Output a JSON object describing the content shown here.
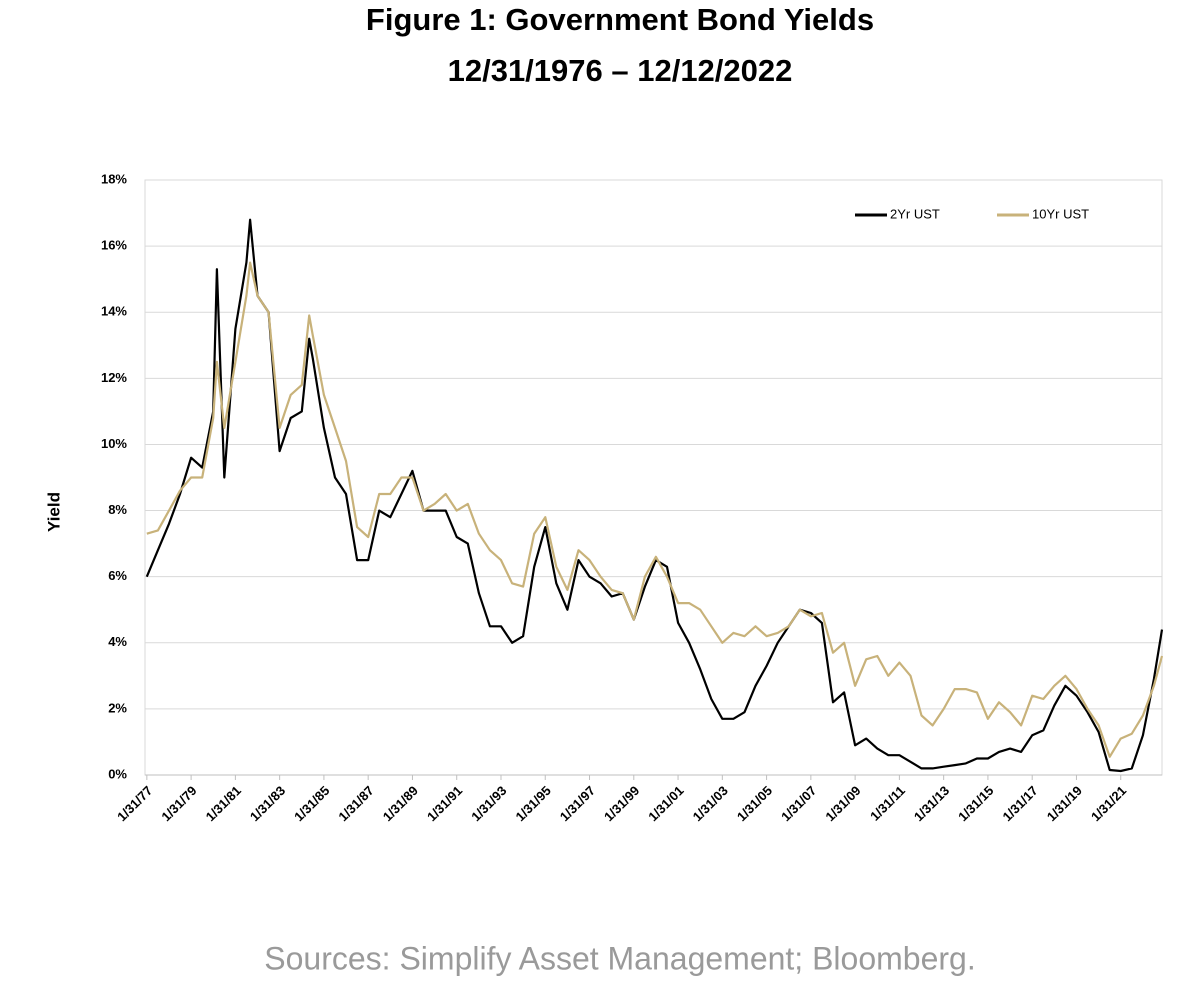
{
  "chart_data": {
    "type": "line",
    "title": "Figure 1:  Government Bond Yields",
    "subtitle": "12/31/1976 – 12/12/2022",
    "y_label": "Yield",
    "source": "Sources: Simplify Asset Management; Bloomberg.",
    "x": [
      "1/31/77",
      "7/31/77",
      "1/31/78",
      "7/31/78",
      "1/31/79",
      "7/31/79",
      "1/31/80",
      "3/31/80",
      "7/31/80",
      "1/31/81",
      "7/31/81",
      "9/30/81",
      "1/31/82",
      "7/31/82",
      "1/31/83",
      "7/31/83",
      "1/31/84",
      "5/31/84",
      "7/31/84",
      "1/31/85",
      "7/31/85",
      "1/31/86",
      "7/31/86",
      "1/31/87",
      "7/31/87",
      "1/31/88",
      "7/31/88",
      "1/31/89",
      "7/31/89",
      "1/31/90",
      "7/31/90",
      "1/31/91",
      "7/31/91",
      "1/31/92",
      "7/31/92",
      "1/31/93",
      "7/31/93",
      "1/31/94",
      "7/31/94",
      "1/31/95",
      "7/31/95",
      "1/31/96",
      "7/31/96",
      "1/31/97",
      "7/31/97",
      "1/31/98",
      "7/31/98",
      "1/31/99",
      "7/31/99",
      "1/31/00",
      "7/31/00",
      "1/31/01",
      "7/31/01",
      "1/31/02",
      "7/31/02",
      "1/31/03",
      "7/31/03",
      "1/31/04",
      "7/31/04",
      "1/31/05",
      "7/31/05",
      "1/31/06",
      "7/31/06",
      "1/31/07",
      "7/31/07",
      "1/31/08",
      "7/31/08",
      "1/31/09",
      "7/31/09",
      "1/31/10",
      "7/31/10",
      "1/31/11",
      "7/31/11",
      "1/31/12",
      "7/31/12",
      "1/31/13",
      "7/31/13",
      "1/31/14",
      "7/31/14",
      "1/31/15",
      "7/31/15",
      "1/31/16",
      "7/31/16",
      "1/31/17",
      "7/31/17",
      "1/31/18",
      "7/31/18",
      "1/31/19",
      "7/31/19",
      "1/31/20",
      "7/31/20",
      "1/31/21",
      "7/31/21",
      "1/31/22",
      "7/31/22",
      "12/12/22"
    ],
    "series": [
      {
        "name": "2Yr UST",
        "color": "#000000",
        "values": [
          6.0,
          6.8,
          7.6,
          8.5,
          9.6,
          9.3,
          11.0,
          15.3,
          9.0,
          13.5,
          15.5,
          16.8,
          14.5,
          14.0,
          9.8,
          10.8,
          11.0,
          13.2,
          12.6,
          10.5,
          9.0,
          8.5,
          6.5,
          6.5,
          8.0,
          7.8,
          8.5,
          9.2,
          8.0,
          8.0,
          8.0,
          7.2,
          7.0,
          5.5,
          4.5,
          4.5,
          4.0,
          4.2,
          6.3,
          7.5,
          5.8,
          5.0,
          6.5,
          6.0,
          5.8,
          5.4,
          5.5,
          4.7,
          5.7,
          6.5,
          6.3,
          4.6,
          4.0,
          3.2,
          2.3,
          1.7,
          1.7,
          1.9,
          2.7,
          3.3,
          4.0,
          4.5,
          5.0,
          4.9,
          4.6,
          2.2,
          2.5,
          0.9,
          1.1,
          0.8,
          0.6,
          0.6,
          0.4,
          0.2,
          0.2,
          0.25,
          0.3,
          0.35,
          0.5,
          0.5,
          0.7,
          0.8,
          0.7,
          1.2,
          1.35,
          2.1,
          2.7,
          2.4,
          1.9,
          1.3,
          0.15,
          0.12,
          0.2,
          1.2,
          2.9,
          4.4
        ]
      },
      {
        "name": "10Yr UST",
        "color": "#c8b27a",
        "values": [
          7.3,
          7.4,
          8.0,
          8.6,
          9.0,
          9.0,
          10.8,
          12.5,
          10.5,
          12.5,
          14.5,
          15.5,
          14.5,
          14.0,
          10.5,
          11.5,
          11.8,
          13.9,
          13.3,
          11.5,
          10.5,
          9.5,
          7.5,
          7.2,
          8.5,
          8.5,
          9.0,
          9.0,
          8.0,
          8.2,
          8.5,
          8.0,
          8.2,
          7.3,
          6.8,
          6.5,
          5.8,
          5.7,
          7.3,
          7.8,
          6.3,
          5.6,
          6.8,
          6.5,
          6.0,
          5.6,
          5.5,
          4.7,
          6.0,
          6.6,
          6.0,
          5.2,
          5.2,
          5.0,
          4.5,
          4.0,
          4.3,
          4.2,
          4.5,
          4.2,
          4.3,
          4.5,
          5.0,
          4.8,
          4.9,
          3.7,
          4.0,
          2.7,
          3.5,
          3.6,
          3.0,
          3.4,
          3.0,
          1.8,
          1.5,
          2.0,
          2.6,
          2.6,
          2.5,
          1.7,
          2.2,
          1.9,
          1.5,
          2.4,
          2.3,
          2.7,
          3.0,
          2.6,
          2.0,
          1.5,
          0.55,
          1.1,
          1.25,
          1.8,
          2.7,
          3.6
        ]
      }
    ],
    "xlim": [
      "12/31/76",
      "12/12/22"
    ],
    "xticks": [
      "1/31/77",
      "1/31/79",
      "1/31/81",
      "1/31/83",
      "1/31/85",
      "1/31/87",
      "1/31/89",
      "1/31/91",
      "1/31/93",
      "1/31/95",
      "1/31/97",
      "1/31/99",
      "1/31/01",
      "1/31/03",
      "1/31/05",
      "1/31/07",
      "1/31/09",
      "1/31/11",
      "1/31/13",
      "1/31/15",
      "1/31/17",
      "1/31/19",
      "1/31/21"
    ],
    "ylim": [
      0,
      18
    ],
    "yticks": [
      {
        "value": 0,
        "label": "0%"
      },
      {
        "value": 2,
        "label": "2%"
      },
      {
        "value": 4,
        "label": "4%"
      },
      {
        "value": 6,
        "label": "6%"
      },
      {
        "value": 8,
        "label": "8%"
      },
      {
        "value": 10,
        "label": "10%"
      },
      {
        "value": 12,
        "label": "12%"
      },
      {
        "value": 14,
        "label": "14%"
      },
      {
        "value": 16,
        "label": "16%"
      },
      {
        "value": 18,
        "label": "18%"
      }
    ],
    "grid": true,
    "legend": "top-right"
  }
}
